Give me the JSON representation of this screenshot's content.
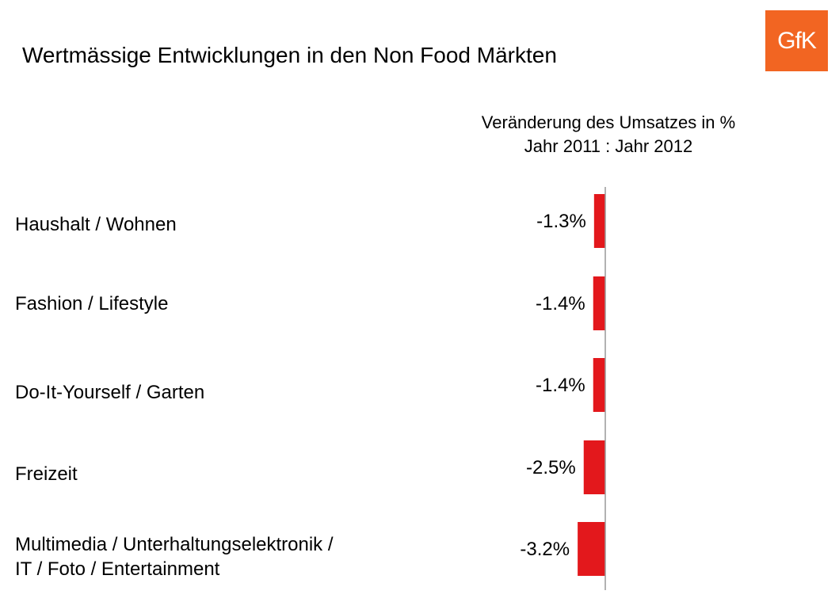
{
  "title": "Wertmässige Entwicklungen in den Non Food Märkten",
  "logo_text": "GfK",
  "colors": {
    "bar": "#e3181c",
    "logo": "#f26522",
    "axis": "#999999"
  },
  "chart_data": {
    "type": "bar",
    "orientation": "horizontal",
    "subtitle": [
      "Veränderung des Umsatzes in %",
      "Jahr 2011 : Jahr 2012"
    ],
    "categories": [
      [
        "Haushalt / Wohnen"
      ],
      [
        "Fashion / Lifestyle"
      ],
      [
        "Do-It-Yourself / Garten"
      ],
      [
        "Freizeit"
      ],
      [
        "Multimedia / Unterhaltungselektronik /",
        "IT / Foto / Entertainment"
      ]
    ],
    "values": [
      -1.3,
      -1.4,
      -1.4,
      -2.5,
      -3.2
    ],
    "value_labels": [
      "-1.3%",
      "-1.4%",
      "-1.4%",
      "-2.5%",
      "-3.2%"
    ],
    "unit": "%",
    "xlim": [
      -3.2,
      0
    ],
    "grid": false,
    "legend": "none"
  }
}
